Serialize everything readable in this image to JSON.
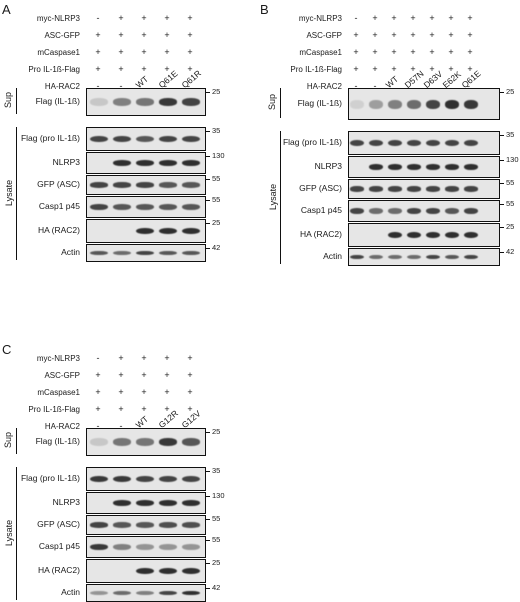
{
  "panels": [
    {
      "id": "A",
      "conditions": [
        {
          "label": "myc-NLRP3",
          "signs": [
            "-",
            "+",
            "+",
            "+",
            "+"
          ]
        },
        {
          "label": "ASC-GFP",
          "signs": [
            "+",
            "+",
            "+",
            "+",
            "+"
          ]
        },
        {
          "label": "mCaspase1",
          "signs": [
            "+",
            "+",
            "+",
            "+",
            "+"
          ]
        },
        {
          "label": "Pro IL-1ß-Flag",
          "signs": [
            "+",
            "+",
            "+",
            "+",
            "+"
          ]
        },
        {
          "label": "HA-RAC2",
          "signs": [
            "-",
            "-",
            "",
            "",
            ""
          ]
        }
      ],
      "lanes": [
        "WT",
        "Q61E",
        "Q61R"
      ],
      "groups": {
        "sup": "Sup",
        "lysate": "Lysate"
      },
      "sup_blots": [
        {
          "label": "Flag (IL-1ß)",
          "mw": [
            "25"
          ]
        }
      ],
      "lysate_blots": [
        {
          "label": "Flag (pro IL-1ß)",
          "mw": [
            "35"
          ]
        },
        {
          "label": "NLRP3",
          "mw": [
            "130"
          ]
        },
        {
          "label": "GFP (ASC)",
          "mw": [
            "55"
          ]
        },
        {
          "label": "Casp1 p45",
          "mw": [
            "55"
          ]
        },
        {
          "label": "HA (RAC2)",
          "mw": [
            "25"
          ]
        },
        {
          "label": "Actin",
          "mw": [
            "42"
          ]
        }
      ]
    },
    {
      "id": "B",
      "conditions": [
        {
          "label": "myc-NLRP3",
          "signs": [
            "-",
            "+",
            "+",
            "+",
            "+",
            "+",
            "+"
          ]
        },
        {
          "label": "ASC-GFP",
          "signs": [
            "+",
            "+",
            "+",
            "+",
            "+",
            "+",
            "+"
          ]
        },
        {
          "label": "mCaspase1",
          "signs": [
            "+",
            "+",
            "+",
            "+",
            "+",
            "+",
            "+"
          ]
        },
        {
          "label": "Pro IL-1ß-Flag",
          "signs": [
            "+",
            "+",
            "+",
            "+",
            "+",
            "+",
            "+"
          ]
        },
        {
          "label": "HA-RAC2",
          "signs": [
            "-",
            "-",
            "",
            "",
            "",
            "",
            ""
          ]
        }
      ],
      "lanes": [
        "WT",
        "D57N",
        "D63V",
        "E62K",
        "Q61E"
      ],
      "groups": {
        "sup": "Sup",
        "lysate": "Lysate"
      },
      "sup_blots": [
        {
          "label": "Flag (IL-1ß)",
          "mw": [
            "25"
          ]
        }
      ],
      "lysate_blots": [
        {
          "label": "Flag (pro IL-1ß)",
          "mw": [
            "35"
          ]
        },
        {
          "label": "NLRP3",
          "mw": [
            "130"
          ]
        },
        {
          "label": "GFP (ASC)",
          "mw": [
            "55"
          ]
        },
        {
          "label": "Casp1 p45",
          "mw": [
            "55"
          ]
        },
        {
          "label": "HA (RAC2)",
          "mw": [
            "25"
          ]
        },
        {
          "label": "Actin",
          "mw": [
            "42"
          ]
        }
      ]
    },
    {
      "id": "C",
      "conditions": [
        {
          "label": "myc-NLRP3",
          "signs": [
            "-",
            "+",
            "+",
            "+",
            "+"
          ]
        },
        {
          "label": "ASC-GFP",
          "signs": [
            "+",
            "+",
            "+",
            "+",
            "+"
          ]
        },
        {
          "label": "mCaspase1",
          "signs": [
            "+",
            "+",
            "+",
            "+",
            "+"
          ]
        },
        {
          "label": "Pro IL-1ß-Flag",
          "signs": [
            "+",
            "+",
            "+",
            "+",
            "+"
          ]
        },
        {
          "label": "HA-RAC2",
          "signs": [
            "-",
            "-",
            "",
            "",
            ""
          ]
        }
      ],
      "lanes": [
        "WT",
        "G12R",
        "G12V"
      ],
      "groups": {
        "sup": "Sup",
        "lysate": "Lysate"
      },
      "sup_blots": [
        {
          "label": "Flag (IL-1ß)",
          "mw": [
            "25"
          ]
        }
      ],
      "lysate_blots": [
        {
          "label": "Flag (pro IL-1ß)",
          "mw": [
            "35"
          ]
        },
        {
          "label": "NLRP3",
          "mw": [
            "130"
          ]
        },
        {
          "label": "GFP (ASC)",
          "mw": [
            "55"
          ]
        },
        {
          "label": "Casp1 p45",
          "mw": [
            "55"
          ]
        },
        {
          "label": "HA (RAC2)",
          "mw": [
            "25"
          ]
        },
        {
          "label": "Actin",
          "mw": [
            "42"
          ]
        }
      ]
    }
  ]
}
